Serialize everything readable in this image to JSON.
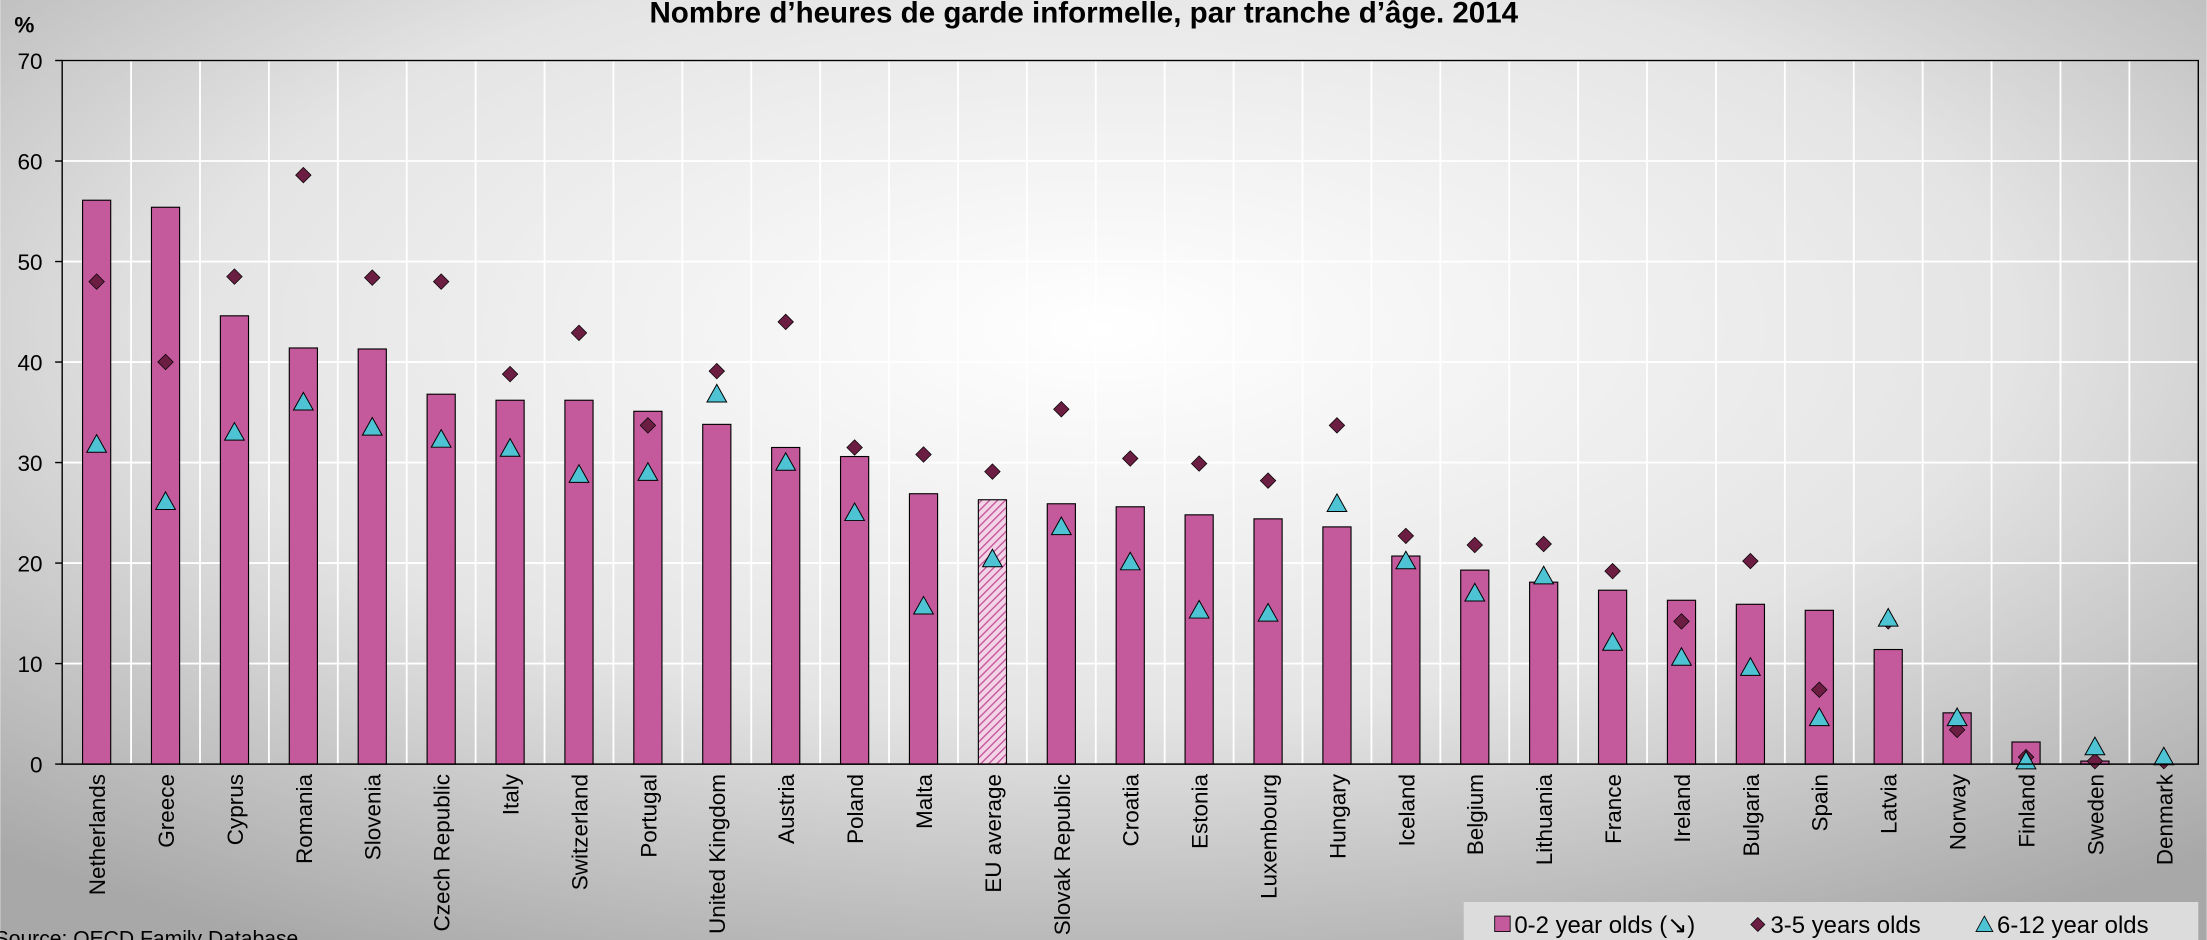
{
  "chart_data": {
    "type": "bar",
    "title": "Nombre d’heures de garde informelle, par tranche d’âge. 2014",
    "y_unit": "%",
    "source": "Source: OECD Family Database",
    "categories": [
      "Netherlands",
      "Greece",
      "Cyprus",
      "Romania",
      "Slovenia",
      "Czech Republic",
      "Italy",
      "Switzerland",
      "Portugal",
      "United Kingdom",
      "Austria",
      "Poland",
      "Malta",
      "EU average",
      "Slovak Republic",
      "Croatia",
      "Estonia",
      "Luxembourg",
      "Hungary",
      "Iceland",
      "Belgium",
      "Lithuania",
      "France",
      "Ireland",
      "Bulgaria",
      "Spain",
      "Latvia",
      "Norway",
      "Finland",
      "Sweden",
      "Denmark"
    ],
    "series": [
      {
        "name": "0-2 year olds (↘)",
        "color": "#c45a9c",
        "marker": "bar",
        "values": [
          56.1,
          55.4,
          44.6,
          41.4,
          41.3,
          36.8,
          36.2,
          36.2,
          35.1,
          33.8,
          31.5,
          30.6,
          26.9,
          26.3,
          25.9,
          25.6,
          24.8,
          24.4,
          23.6,
          20.7,
          19.3,
          18.1,
          17.3,
          16.3,
          15.9,
          15.3,
          11.4,
          5.1,
          2.2,
          0.3,
          null
        ]
      },
      {
        "name": "3-5 years olds",
        "color": "#6b1e42",
        "marker": "diamond",
        "values": [
          48,
          40,
          48.5,
          58.6,
          48.4,
          48,
          38.8,
          42.9,
          33.7,
          39.1,
          44,
          31.5,
          30.8,
          29.1,
          35.3,
          30.4,
          29.9,
          28.2,
          33.7,
          22.7,
          21.8,
          21.9,
          19.2,
          14.2,
          20.2,
          7.4,
          14.2,
          3.4,
          0.7,
          0.3,
          0.3
        ]
      },
      {
        "name": "6-12 year olds",
        "color": "#4dc3d3",
        "marker": "triangle",
        "values": [
          31.8,
          26.1,
          33,
          36,
          33.5,
          32.3,
          31.4,
          28.8,
          29,
          36.8,
          30,
          25,
          15.7,
          20.4,
          23.6,
          20.1,
          15.3,
          15,
          25.9,
          20.2,
          17,
          18.7,
          12.1,
          10.6,
          9.6,
          4.6,
          14.5,
          4.6,
          0.3,
          1.7,
          0.7
        ]
      }
    ],
    "hatched_category": "EU average",
    "ylim": [
      0,
      70
    ],
    "yticks": [
      0,
      10,
      20,
      30,
      40,
      50,
      60,
      70
    ],
    "grid": true,
    "legend": "bottom-right"
  }
}
